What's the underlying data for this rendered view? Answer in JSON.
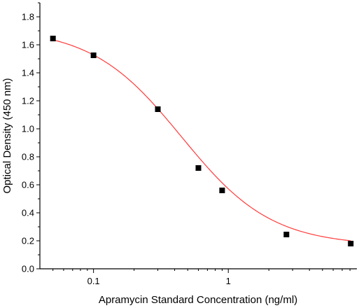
{
  "chart_data": {
    "type": "scatter",
    "xlabel": "Apramycin Standard Concentration (ng/ml)",
    "ylabel": "Optical Density (450 nm)",
    "x_scale": "log",
    "xlim": [
      0.04,
      9
    ],
    "ylim": [
      0,
      1.9
    ],
    "x_ticks": [
      0.1,
      1
    ],
    "x_tick_labels": [
      "0.1",
      "1"
    ],
    "y_ticks": [
      0.0,
      0.2,
      0.4,
      0.6,
      0.8,
      1.0,
      1.2,
      1.4,
      1.6,
      1.8
    ],
    "y_tick_labels": [
      "0.0",
      "0.2",
      "0.4",
      "0.6",
      "0.8",
      "1.0",
      "1.2",
      "1.4",
      "1.6",
      "1.8"
    ],
    "grid": false,
    "series": [
      {
        "marker": "square",
        "color": "#000000",
        "x": [
          0.05,
          0.1,
          0.3,
          0.6,
          0.9,
          2.7,
          8.1
        ],
        "y": [
          1.645,
          1.525,
          1.14,
          0.72,
          0.56,
          0.245,
          0.18
        ]
      }
    ],
    "fit_curve": {
      "model": "four-parameter logistic",
      "color": "#ff3b3b",
      "top": 1.72,
      "bottom": 0.165,
      "ec50": 0.45,
      "hill": 1.3
    }
  }
}
